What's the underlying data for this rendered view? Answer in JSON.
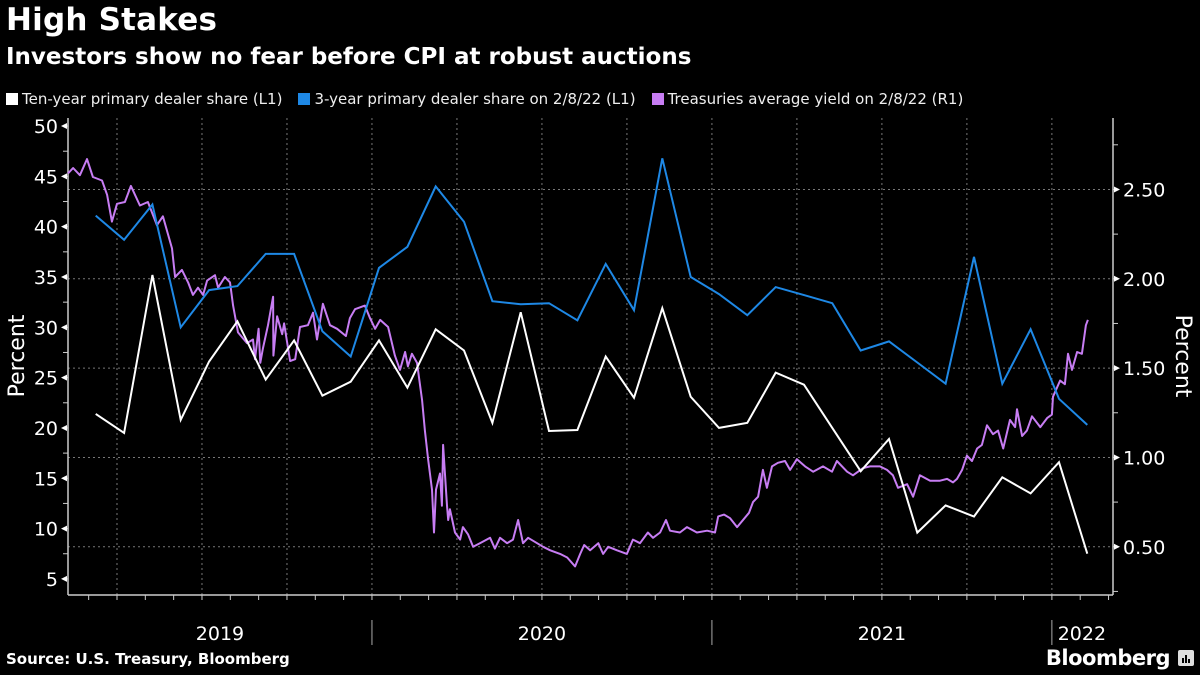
{
  "header": {
    "title": "High Stakes",
    "subtitle": "Investors show no fear before CPI at robust auctions"
  },
  "footer": {
    "source": "Source: U.S. Treasury, Bloomberg",
    "brand": "Bloomberg"
  },
  "colors": {
    "background": "#000000",
    "ten_year": "#ffffff",
    "three_year": "#1e88e5",
    "yield": "#c77df3",
    "grid": "#666666"
  },
  "chart_data": {
    "type": "line",
    "title": "High Stakes",
    "subtitle": "Investors show no fear before CPI at robust auctions",
    "xlabel": "",
    "ylabel_left": "Percent",
    "ylabel_right": "Percent",
    "ylim_left": [
      3.4,
      50.8
    ],
    "ylim_right": [
      0.23,
      2.9
    ],
    "xlim": [
      "2019-02-08",
      "2022-02-15"
    ],
    "left_ticks": [
      5,
      10,
      15,
      20,
      25,
      30,
      35,
      40,
      45,
      50
    ],
    "right_ticks": [
      "0.50",
      "1.00",
      "1.50",
      "2.00",
      "2.50"
    ],
    "year_labels": [
      "2019",
      "2020",
      "2021",
      "2022"
    ],
    "grid": true,
    "legend_position": "top-left",
    "legend": [
      "Ten-year primary dealer share (L1)",
      "3-year primary dealer share on 2/8/22 (L1)",
      "Treasuries average yield on 2/8/22 (R1)"
    ],
    "monthly_x": [
      "2019-03",
      "2019-04",
      "2019-05",
      "2019-06",
      "2019-07",
      "2019-08",
      "2019-09",
      "2019-10",
      "2019-11",
      "2019-12",
      "2020-01",
      "2020-02",
      "2020-03",
      "2020-04",
      "2020-05",
      "2020-06",
      "2020-07",
      "2020-08",
      "2020-09",
      "2020-10",
      "2020-11",
      "2020-12",
      "2021-01",
      "2021-02",
      "2021-03",
      "2021-04",
      "2021-05",
      "2021-06",
      "2021-07",
      "2021-08",
      "2021-09",
      "2021-10",
      "2021-11",
      "2021-12",
      "2022-01",
      "2022-02"
    ],
    "series": [
      {
        "name": "Ten-year primary dealer share (L1)",
        "axis": "left",
        "values": [
          21.4,
          19.5,
          35.2,
          20.8,
          26.6,
          30.6,
          24.8,
          28.7,
          23.2,
          24.6,
          28.7,
          24.0,
          29.8,
          27.7,
          20.5,
          31.5,
          19.7,
          19.8,
          27.1,
          23.0,
          31.9,
          23.1,
          20.0,
          20.5,
          25.5,
          24.3,
          20.0,
          15.7,
          18.9,
          9.6,
          12.3,
          11.2,
          15.1,
          13.5,
          16.6,
          7.5
        ]
      },
      {
        "name": "3-year primary dealer share on 2/8/22 (L1)",
        "axis": "left",
        "values": [
          41.1,
          38.7,
          42.2,
          30.0,
          33.7,
          34.1,
          37.3,
          37.3,
          29.6,
          27.1,
          35.9,
          38.0,
          44.0,
          40.5,
          32.6,
          32.3,
          32.4,
          30.7,
          36.3,
          31.7,
          46.8,
          35.0,
          33.3,
          31.2,
          34.0,
          33.2,
          32.4,
          27.7,
          28.6,
          26.5,
          24.4,
          37.0,
          24.4,
          29.8,
          22.9,
          20.3
        ]
      },
      {
        "name": "Treasuries average yield on 2/8/22 (R1)",
        "axis": "right",
        "points": [
          [
            1.27,
            2.59
          ],
          [
            1.45,
            2.62
          ],
          [
            1.69,
            2.58
          ],
          [
            1.94,
            2.67
          ],
          [
            2.15,
            2.57
          ],
          [
            2.47,
            2.55
          ],
          [
            2.65,
            2.47
          ],
          [
            2.82,
            2.32
          ],
          [
            3.0,
            2.42
          ],
          [
            3.28,
            2.43
          ],
          [
            3.49,
            2.52
          ],
          [
            3.81,
            2.41
          ],
          [
            4.09,
            2.43
          ],
          [
            4.41,
            2.3
          ],
          [
            4.62,
            2.35
          ],
          [
            4.94,
            2.17
          ],
          [
            5.05,
            2.01
          ],
          [
            5.29,
            2.05
          ],
          [
            5.51,
            1.98
          ],
          [
            5.68,
            1.91
          ],
          [
            5.86,
            1.95
          ],
          [
            6.04,
            1.91
          ],
          [
            6.18,
            1.99
          ],
          [
            6.46,
            2.02
          ],
          [
            6.57,
            1.95
          ],
          [
            6.81,
            2.01
          ],
          [
            6.99,
            1.98
          ],
          [
            7.1,
            1.85
          ],
          [
            7.27,
            1.7
          ],
          [
            7.59,
            1.64
          ],
          [
            7.87,
            1.55
          ],
          [
            8.0,
            1.72
          ],
          [
            8.52,
            1.57
          ],
          [
            7.8,
            1.66
          ],
          [
            8.06,
            1.53
          ],
          [
            8.15,
            1.61
          ],
          [
            8.33,
            1.74
          ],
          [
            8.51,
            1.9
          ],
          [
            8.65,
            1.79
          ],
          [
            8.83,
            1.69
          ],
          [
            8.9,
            1.75
          ],
          [
            9.11,
            1.54
          ],
          [
            9.29,
            1.55
          ],
          [
            9.46,
            1.73
          ],
          [
            9.74,
            1.74
          ],
          [
            9.92,
            1.81
          ],
          [
            10.06,
            1.66
          ],
          [
            10.27,
            1.86
          ],
          [
            10.52,
            1.74
          ],
          [
            10.77,
            1.72
          ],
          [
            11.08,
            1.68
          ],
          [
            11.22,
            1.78
          ],
          [
            11.4,
            1.83
          ],
          [
            11.75,
            1.85
          ],
          [
            11.93,
            1.78
          ],
          [
            12.11,
            1.72
          ],
          [
            12.29,
            1.77
          ],
          [
            12.57,
            1.73
          ],
          [
            12.81,
            1.57
          ],
          [
            12.99,
            1.49
          ],
          [
            13.17,
            1.59
          ],
          [
            13.27,
            1.51
          ],
          [
            13.41,
            1.58
          ],
          [
            13.59,
            1.53
          ],
          [
            13.77,
            1.32
          ],
          [
            13.87,
            1.15
          ],
          [
            13.98,
            0.99
          ],
          [
            14.12,
            0.82
          ],
          [
            14.19,
            0.58
          ],
          [
            14.26,
            0.82
          ],
          [
            14.4,
            0.91
          ],
          [
            14.47,
            0.73
          ],
          [
            14.51,
            1.07
          ],
          [
            14.65,
            0.73
          ],
          [
            14.69,
            0.65
          ],
          [
            14.75,
            0.71
          ],
          [
            14.93,
            0.58
          ],
          [
            15.11,
            0.54
          ],
          [
            15.21,
            0.61
          ],
          [
            15.39,
            0.57
          ],
          [
            15.57,
            0.5
          ],
          [
            15.81,
            0.52
          ],
          [
            16.17,
            0.55
          ],
          [
            16.34,
            0.49
          ],
          [
            16.52,
            0.55
          ],
          [
            16.77,
            0.52
          ],
          [
            16.98,
            0.54
          ],
          [
            17.16,
            0.65
          ],
          [
            17.33,
            0.52
          ],
          [
            17.51,
            0.55
          ],
          [
            17.83,
            0.52
          ],
          [
            18.04,
            0.5
          ],
          [
            18.29,
            0.48
          ],
          [
            18.64,
            0.46
          ],
          [
            18.89,
            0.44
          ],
          [
            19.17,
            0.39
          ],
          [
            19.35,
            0.46
          ],
          [
            19.49,
            0.51
          ],
          [
            19.7,
            0.48
          ],
          [
            19.99,
            0.52
          ],
          [
            20.16,
            0.46
          ],
          [
            20.34,
            0.5
          ],
          [
            20.65,
            0.48
          ],
          [
            21.0,
            0.46
          ],
          [
            21.21,
            0.54
          ],
          [
            21.46,
            0.52
          ],
          [
            21.74,
            0.58
          ],
          [
            21.92,
            0.55
          ],
          [
            22.17,
            0.58
          ],
          [
            22.38,
            0.65
          ],
          [
            22.52,
            0.59
          ],
          [
            22.87,
            0.58
          ],
          [
            23.12,
            0.61
          ],
          [
            23.47,
            0.58
          ],
          [
            23.83,
            0.59
          ],
          [
            24.11,
            0.58
          ],
          [
            24.22,
            0.67
          ],
          [
            24.43,
            0.68
          ],
          [
            24.64,
            0.66
          ],
          [
            24.89,
            0.61
          ],
          [
            25.31,
            0.69
          ],
          [
            25.45,
            0.75
          ],
          [
            25.63,
            0.78
          ],
          [
            25.8,
            0.93
          ],
          [
            25.94,
            0.83
          ],
          [
            26.12,
            0.95
          ],
          [
            26.33,
            0.97
          ],
          [
            26.58,
            0.98
          ],
          [
            26.76,
            0.93
          ],
          [
            27.0,
            0.99
          ],
          [
            27.29,
            0.95
          ],
          [
            27.57,
            0.92
          ],
          [
            27.92,
            0.95
          ],
          [
            28.24,
            0.92
          ],
          [
            28.41,
            0.98
          ],
          [
            28.77,
            0.92
          ],
          [
            28.98,
            0.9
          ],
          [
            29.33,
            0.94
          ],
          [
            29.58,
            0.95
          ],
          [
            29.93,
            0.95
          ],
          [
            30.18,
            0.93
          ],
          [
            30.39,
            0.9
          ],
          [
            30.57,
            0.83
          ],
          [
            30.89,
            0.85
          ],
          [
            31.1,
            0.78
          ],
          [
            31.34,
            0.9
          ],
          [
            31.7,
            0.87
          ],
          [
            32.05,
            0.87
          ],
          [
            32.3,
            0.88
          ],
          [
            32.51,
            0.86
          ],
          [
            32.65,
            0.88
          ],
          [
            32.83,
            0.93
          ],
          [
            33.0,
            1.01
          ],
          [
            33.18,
            0.98
          ],
          [
            33.36,
            1.05
          ],
          [
            33.53,
            1.07
          ],
          [
            33.71,
            1.18
          ],
          [
            33.92,
            1.13
          ],
          [
            34.1,
            1.15
          ],
          [
            34.28,
            1.05
          ],
          [
            34.52,
            1.21
          ],
          [
            34.7,
            1.17
          ],
          [
            34.77,
            1.27
          ],
          [
            34.95,
            1.12
          ],
          [
            35.12,
            1.15
          ],
          [
            35.3,
            1.23
          ],
          [
            35.59,
            1.17
          ],
          [
            35.83,
            1.22
          ],
          [
            36.0,
            1.24
          ],
          [
            36.04,
            1.34
          ],
          [
            36.29,
            1.43
          ],
          [
            36.46,
            1.41
          ],
          [
            36.57,
            1.58
          ],
          [
            36.71,
            1.49
          ],
          [
            36.89,
            1.59
          ],
          [
            37.06,
            1.58
          ],
          [
            37.2,
            1.74
          ],
          [
            37.27,
            1.77
          ]
        ]
      }
    ]
  }
}
